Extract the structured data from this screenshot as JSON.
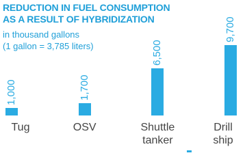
{
  "chart_data": {
    "type": "bar",
    "title": [
      "REDUCTION IN FUEL CONSUMPTION",
      "AS A RESULT OF HYBRIDIZATION"
    ],
    "subtitle": [
      "in thousand gallons",
      "(1 gallon = 3,785 liters)"
    ],
    "categories": [
      "Tug",
      "OSV",
      "Shuttle tanker",
      "Drill ship"
    ],
    "values": [
      1000,
      1700,
      6500,
      9700
    ],
    "value_labels": [
      "1,000",
      "1,700",
      "6,500",
      "9,700"
    ],
    "color": "#2aabe2"
  }
}
